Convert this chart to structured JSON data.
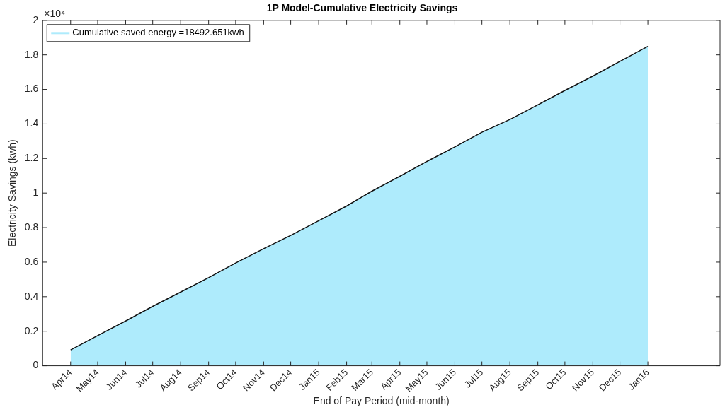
{
  "chart_data": {
    "type": "area",
    "title": "1P Model-Cumulative Electricity Savings",
    "xlabel": "End of Pay Period (mid-month)",
    "ylabel": "Electricity Savings (kwh)",
    "annotations": [
      "×10⁴"
    ],
    "x": [
      "2014-04-15",
      "2014-05-15",
      "2014-06-15",
      "2014-07-15",
      "2014-08-15",
      "2014-09-15",
      "2014-10-15",
      "2014-11-15",
      "2014-12-15",
      "2015-01-15",
      "2015-02-15",
      "2015-03-15",
      "2015-04-15",
      "2015-05-15",
      "2015-06-15",
      "2015-07-15",
      "2015-08-15",
      "2015-09-15",
      "2015-10-15",
      "2015-11-15",
      "2015-12-15",
      "2016-01-15"
    ],
    "series": [
      {
        "name": "Cumulative saved energy =18492.651kwh",
        "color": "#aeebfc",
        "values": [
          0.092,
          0.175,
          0.259,
          0.344,
          0.427,
          0.51,
          0.595,
          0.678,
          0.755,
          0.84,
          0.925,
          1.011,
          1.097,
          1.183,
          1.267,
          1.352,
          1.426,
          1.511,
          1.594,
          1.677,
          1.762,
          1.849
        ]
      }
    ],
    "xlim": [
      "2014-03-15",
      "2016-04-04"
    ],
    "xticks": [
      {
        "value": "2014-04-15",
        "label": "Apr14"
      },
      {
        "value": "2014-05-15",
        "label": "May14"
      },
      {
        "value": "2014-06-15",
        "label": "Jun14"
      },
      {
        "value": "2014-07-15",
        "label": "Jul14"
      },
      {
        "value": "2014-08-15",
        "label": "Aug14"
      },
      {
        "value": "2014-09-15",
        "label": "Sep14"
      },
      {
        "value": "2014-10-15",
        "label": "Oct14"
      },
      {
        "value": "2014-11-15",
        "label": "Nov14"
      },
      {
        "value": "2014-12-15",
        "label": "Dec14"
      },
      {
        "value": "2015-01-15",
        "label": "Jan15"
      },
      {
        "value": "2015-02-15",
        "label": "Feb15"
      },
      {
        "value": "2015-03-15",
        "label": "Mar15"
      },
      {
        "value": "2015-04-15",
        "label": "Apr15"
      },
      {
        "value": "2015-05-15",
        "label": "May15"
      },
      {
        "value": "2015-06-15",
        "label": "Jun15"
      },
      {
        "value": "2015-07-15",
        "label": "Jul15"
      },
      {
        "value": "2015-08-15",
        "label": "Aug15"
      },
      {
        "value": "2015-09-15",
        "label": "Sep15"
      },
      {
        "value": "2015-10-15",
        "label": "Oct15"
      },
      {
        "value": "2015-11-15",
        "label": "Nov15"
      },
      {
        "value": "2015-12-15",
        "label": "Dec15"
      },
      {
        "value": "2016-01-15",
        "label": "Jan16"
      }
    ],
    "ylim": [
      0,
      2
    ],
    "yticks": [
      0,
      0.2,
      0.4,
      0.6,
      0.8,
      1,
      1.2,
      1.4,
      1.6,
      1.8,
      2
    ],
    "grid": false,
    "legend": "top left",
    "marker": "none"
  }
}
